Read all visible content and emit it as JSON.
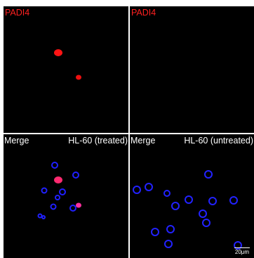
{
  "panels": {
    "top_left": {
      "label": "PADI4"
    },
    "top_right": {
      "label": "PADI4"
    },
    "bottom_left": {
      "label_left": "Merge",
      "label_right": "HL-60 (treated)"
    },
    "bottom_right": {
      "label_left": "Merge",
      "label_right": "HL-60 (untreated)",
      "scale_bar": "20μm"
    }
  },
  "colors": {
    "padi4_signal": "#ff1a1a",
    "nucleus_signal": "#1a1aff",
    "merge_signal": "#ff2a80",
    "background": "#000000"
  }
}
